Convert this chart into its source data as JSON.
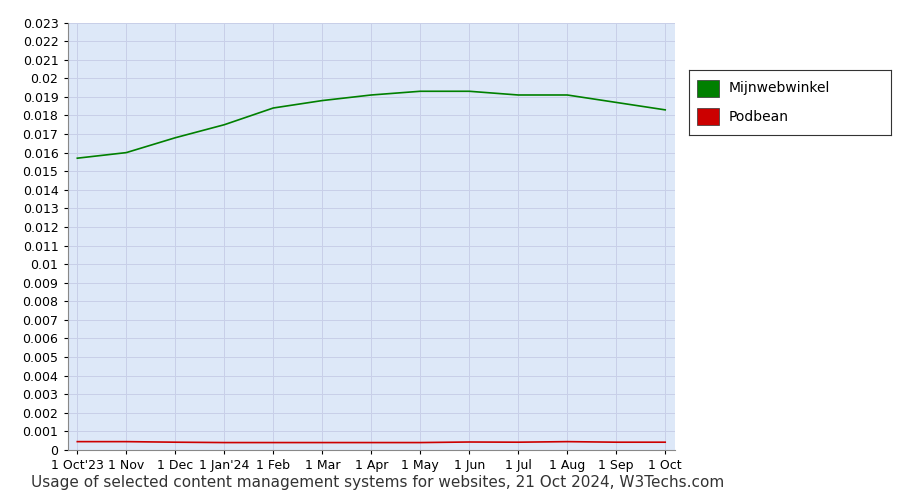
{
  "title": "Usage of selected content management systems for websites, 21 Oct 2024, W3Techs.com",
  "plot_bg_color": "#dde8f8",
  "outer_bg_color": "#ffffff",
  "grid_color": "#c8cfe8",
  "x_tick_labels": [
    "1 Oct'23",
    "1 Nov",
    "1 Dec",
    "1 Jan'24",
    "1 Feb",
    "1 Mar",
    "1 Apr",
    "1 May",
    "1 Jun",
    "1 Jul",
    "1 Aug",
    "1 Sep",
    "1 Oct"
  ],
  "x_tick_positions": [
    0,
    1,
    2,
    3,
    4,
    5,
    6,
    7,
    8,
    9,
    10,
    11,
    12
  ],
  "mijnwebwinkel_values": [
    0.0157,
    0.016,
    0.0168,
    0.0175,
    0.0184,
    0.0188,
    0.0191,
    0.0193,
    0.0193,
    0.0191,
    0.0191,
    0.0187,
    0.0183
  ],
  "podbean_values": [
    0.00045,
    0.00045,
    0.00042,
    0.0004,
    0.0004,
    0.0004,
    0.0004,
    0.0004,
    0.00043,
    0.00042,
    0.00045,
    0.00042,
    0.00042
  ],
  "mijnwebwinkel_color": "#008000",
  "podbean_color": "#cc0000",
  "ylim_min": 0.0,
  "ylim_max": 0.023,
  "legend_labels": [
    "Mijnwebwinkel",
    "Podbean"
  ],
  "legend_colors": [
    "#008000",
    "#cc0000"
  ],
  "font_size_title": 11,
  "font_size_ticks": 9,
  "font_size_legend": 10,
  "line_width": 1.2
}
